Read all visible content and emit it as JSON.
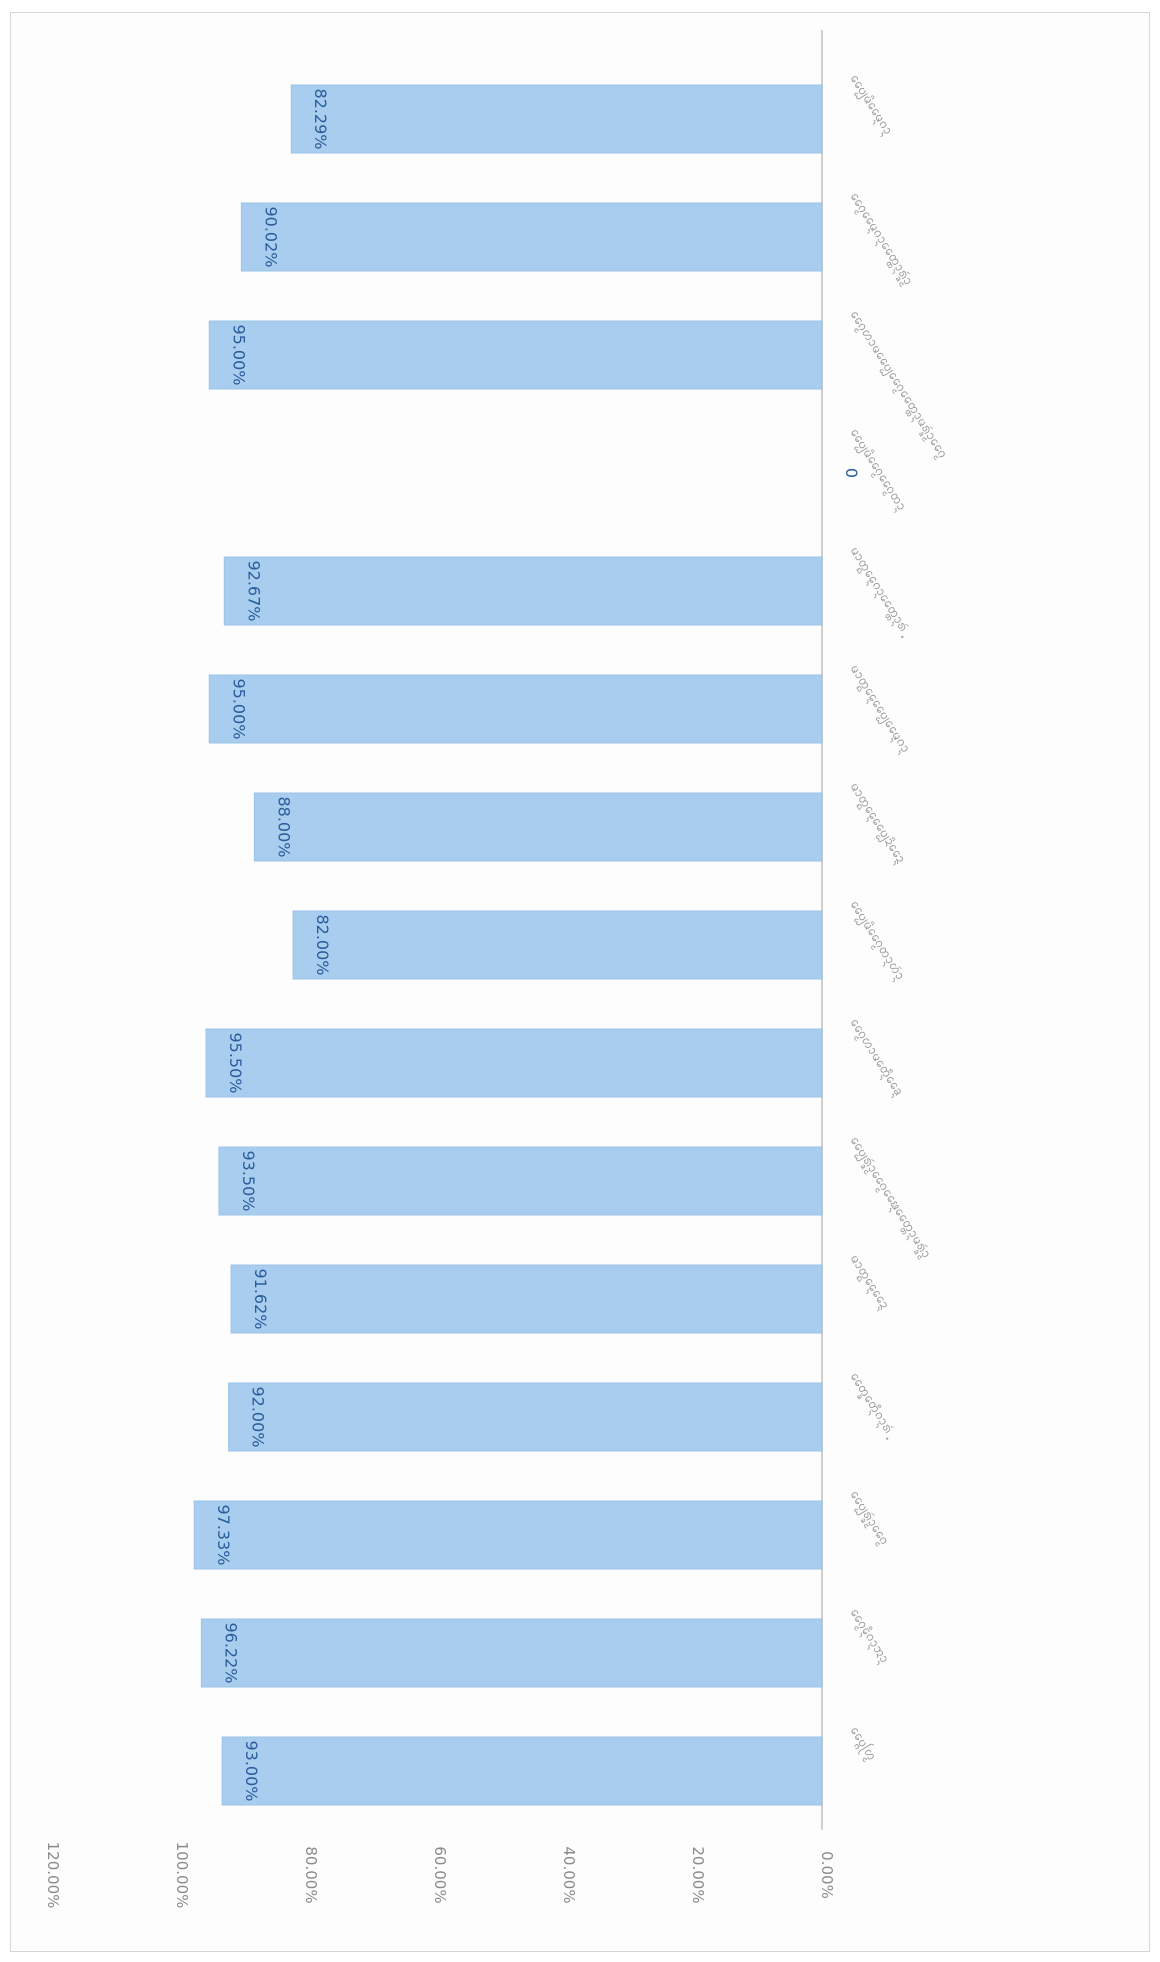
{
  "chart_data": {
    "type": "bar",
    "orientation": "rotated-90",
    "title": "",
    "xlabel": "",
    "ylabel": "",
    "ylim": [
      0,
      120
    ],
    "yticks": [
      "0.00%",
      "20.00%",
      "40.00%",
      "60.00%",
      "80.00%",
      "100.00%",
      "120.00%"
    ],
    "grid": false,
    "legend": "none",
    "categories": [
      "ᨷᩯ᩠ᨻᩕᩉ᩠ᨾ",
      "ᨣᩯ᩠ᨾᩮᩥ᩠ᨶᨣᩣ᩠ᨶᩋᩣ᩠ᨶ",
      "ᨷᩯ᩠ᨷᩁᩢ᩠ᨡᩣ᩠ᨾᨣᩯ᩠ᨾ",
      "ᨲᩯ᩠ᨡᨲᩮᩥ᩠ᨶᨣᩣ᩠ᨶᩁᩢ᩠",
      "ᨾᩣᨲ᩠ᨳᩯ᩠ᨶᨯᩯ᩠ᨶ",
      "ᨷᩯ᩠ᨷᩁᩢ᩠ᨡᩣ᩠ᨾᨣᩯ᩠ᨾᨹᩯ᩠ᨶᨲᩯ᩠ᨲᩣ᩠ᨶᨾᩁᩢ᩠ᨡᩣ᩠ᨾ",
      "ᨣᩯ᩠ᨾᩉᩣᨾᨲᩮᩥ᩠ᨶᨡᩯ᩠ᨶ",
      "ᨷᩯ᩠ᨷᨾᩦᨣᩯ᩠ᨾᨲᩣ᩠ᨶᩉᩢᩣ᩠ᨶ",
      "ᨾᩣᨲ᩠ᨳᩯ᩠ᨶᨷᩯ᩠ᨷᨯᩦᨯᩯ᩠ᨶ",
      "ᨾᩣᨲ᩠ᨳᩯ᩠ᨶᨷᩯ᩠ᨷᨾᩯ᩠ᨶᨣᩣ᩠ᨶ",
      "ᨾᩣᨲ᩠ᨳᩯ᩠ᨶᨣᩣ᩠ᨶᨲᩯ᩠ᨲᩣ᩠ᨶᩁᩢ᩠",
      "ᨷᩯ᩠ᨷᨾᩦᨣᩯ᩠ᨾᨣᩯ᩠ᨾᨲᩣ᩠ᨶ",
      "ᨣᩯ᩠ᨾᩉᩣᨾᨷᩯ᩠ᨷᨣᩯ᩠ᨾᨲᩯ᩠ᨲᩣ᩠ᨶᨾᩁᩢ᩠ᨡᩣ᩠ᨾᨣᩯ᩠ᨾ",
      "ᨣᩯ᩠ᨾᨾᩯ᩠ᨶᨣᩣ᩠ᨶᨲᩯ᩠ᨲᩣ᩠ᨶᩁᩢ᩠ᨡᩣ᩠ᨾ",
      "ᨷᩯ᩠ᨷᨾᩦᨾᩯ᩠ᨶᨣᩣ᩠ᨶ"
    ],
    "values": [
      93.0,
      96.22,
      97.33,
      92.0,
      91.62,
      93.5,
      95.5,
      82.0,
      88.0,
      95.0,
      92.67,
      0,
      95.0,
      90.02,
      82.29
    ],
    "data_labels": [
      "93.00%",
      "96.22%",
      "97.33%",
      "92.00%",
      "91.62%",
      "93.50%",
      "95.50%",
      "82.00%",
      "88.00%",
      "95.00%",
      "92.67%",
      "0",
      "95.00%",
      "90.02%",
      "82.29%"
    ],
    "colors": {
      "bar": "#a9cdee",
      "bar_edge": "#9cc4ea",
      "data_label": "#2a5d9c",
      "tick_label": "#8a8a8a",
      "category_label": "#9a9a9a",
      "axis": "#cfcfcf"
    }
  }
}
